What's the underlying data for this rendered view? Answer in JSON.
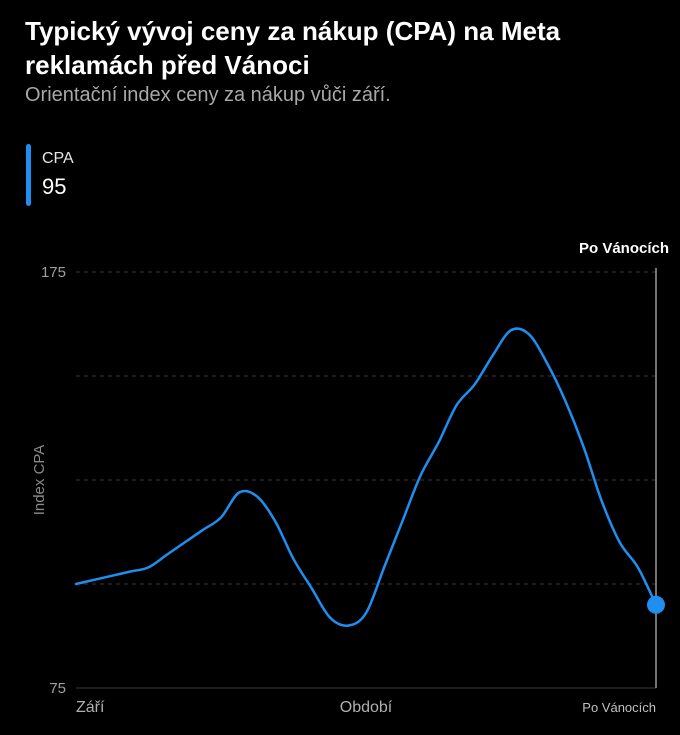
{
  "chart_data": {
    "type": "line",
    "title": "Typický vývoj ceny za nákup (CPA) na Meta reklamách před Vánoci",
    "subtitle": "Orientační index ceny za nákup vůči září.",
    "xlabel": "",
    "ylabel": "Index CPA",
    "ylim": [
      75,
      175
    ],
    "y_ticks": [
      75,
      175
    ],
    "x_tick_labels": [
      "Září",
      "Období",
      "Po Vánocích"
    ],
    "grid": true,
    "legend": {
      "position": "top-left",
      "series_name": "CPA",
      "current_value": "95"
    },
    "highlight": {
      "label": "Po Vánocích",
      "value": 95
    },
    "series": [
      {
        "name": "CPA",
        "color": "#1f8ef1",
        "x": [
          0,
          1,
          2,
          3,
          4,
          5,
          6,
          7,
          8,
          9,
          10,
          11,
          12,
          13,
          14,
          15,
          16,
          17,
          18,
          19,
          20,
          21,
          22,
          23,
          24,
          25,
          26,
          27,
          28,
          29,
          30,
          31,
          32
        ],
        "values": [
          100,
          101,
          102,
          103,
          104,
          107,
          110,
          113,
          116,
          122,
          121,
          115,
          106,
          99,
          92,
          90,
          93,
          104,
          115,
          126,
          134,
          143,
          148,
          155,
          161,
          160,
          153,
          144,
          133,
          120,
          110,
          104,
          95
        ]
      }
    ]
  }
}
